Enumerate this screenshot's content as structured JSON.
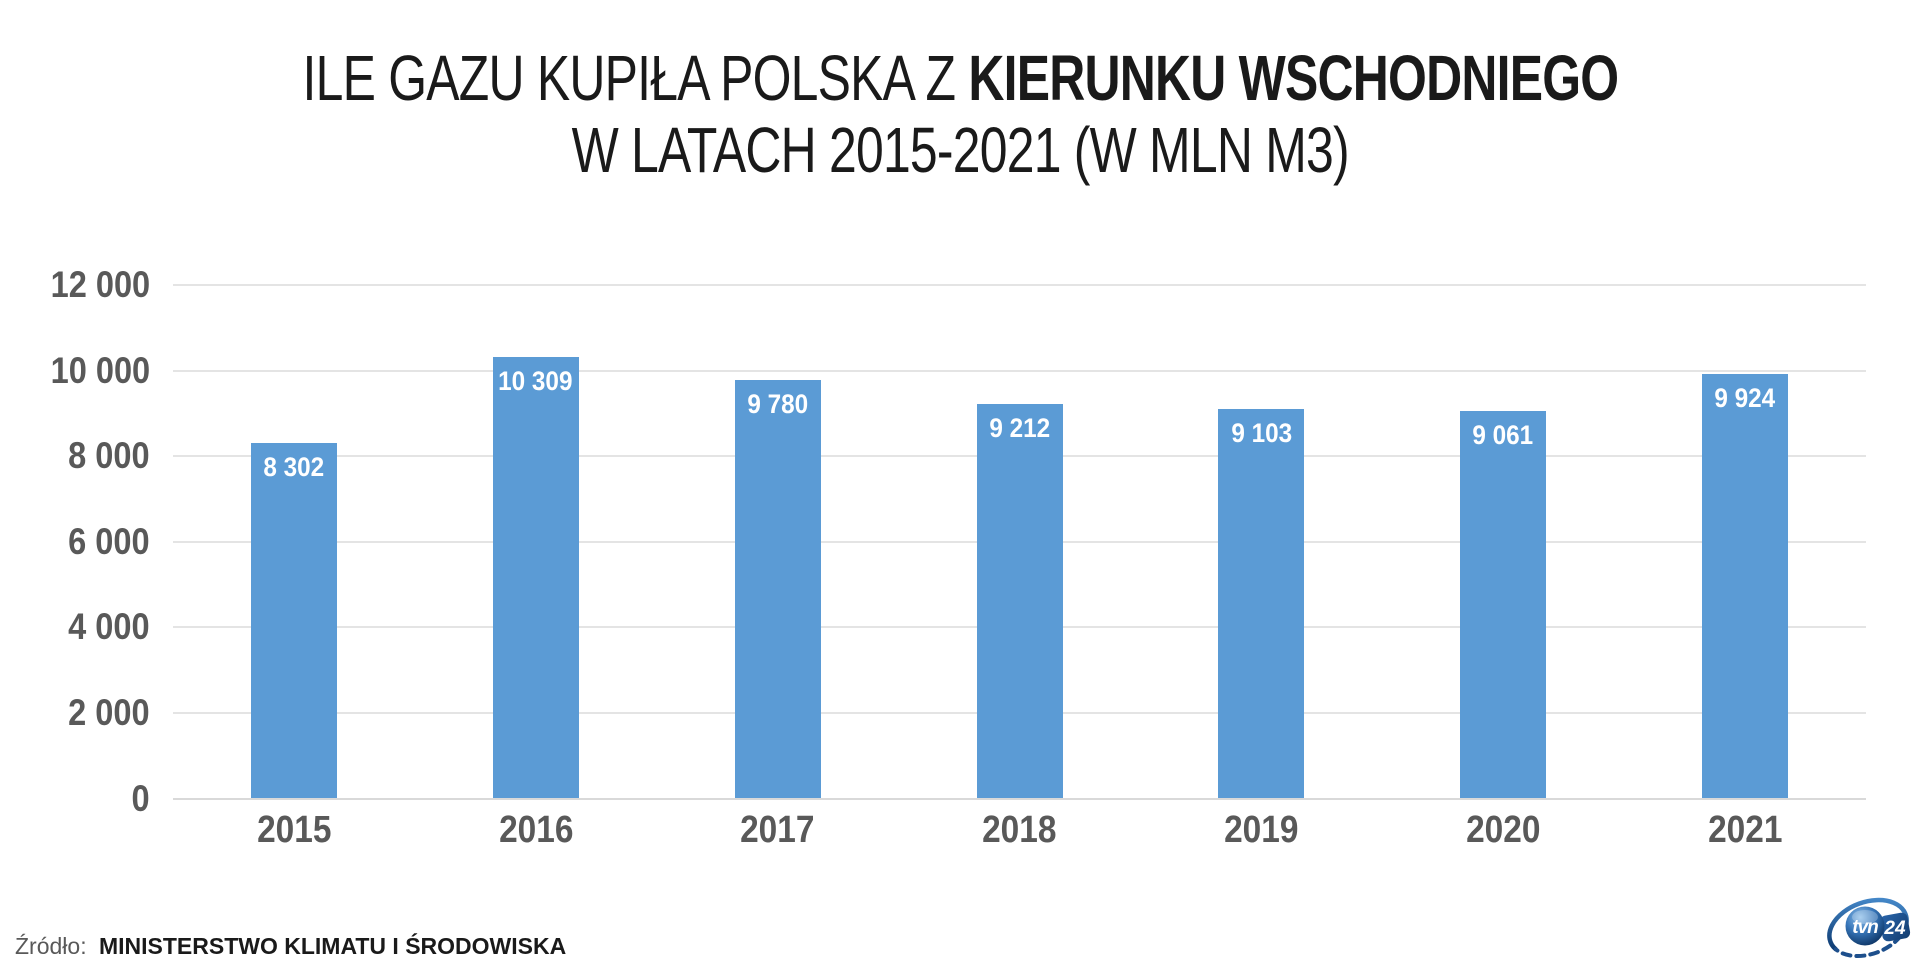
{
  "title": {
    "line1_regular": "ILE GAZU KUPIŁA POLSKA Z ",
    "line1_bold": "KIERUNKU WSCHODNIEGO",
    "line2": "W LATACH 2015-2021 (W MLN M3)"
  },
  "source": {
    "prefix": "Źródło:",
    "name": "MINISTERSTWO KLIMATU I ŚRODOWISKA"
  },
  "logo": {
    "text": "tvn",
    "number": "24"
  },
  "colors": {
    "bar": "#5b9bd5",
    "bar_label": "#ffffff",
    "axis_label": "#595959",
    "gridline": "#e4e4e4",
    "title_text": "#1a1a1a",
    "logo_dark_blue": "#0d3a70",
    "logo_light_blue": "#4e95d8"
  },
  "chart_data": {
    "type": "bar",
    "title": "ILE GAZU KUPIŁA POLSKA Z KIERUNKU WSCHODNIEGO W LATACH 2015-2021 (W MLN M3)",
    "categories": [
      "2015",
      "2016",
      "2017",
      "2018",
      "2019",
      "2020",
      "2021"
    ],
    "values": [
      8302,
      10309,
      9780,
      9212,
      9103,
      9061,
      9924
    ],
    "value_labels": [
      "8 302",
      "10 309",
      "9 780",
      "9 212",
      "9 103",
      "9 061",
      "9 924"
    ],
    "xlabel": "",
    "ylabel": "",
    "ylim": [
      0,
      12000
    ],
    "ytick_interval": 2000,
    "ytick_labels": [
      "0",
      "2 000",
      "4 000",
      "6 000",
      "8 000",
      "10 000",
      "12 000"
    ],
    "grid": true,
    "legend": false,
    "bar_label_position": "inside-top",
    "unit": "mln m3"
  }
}
